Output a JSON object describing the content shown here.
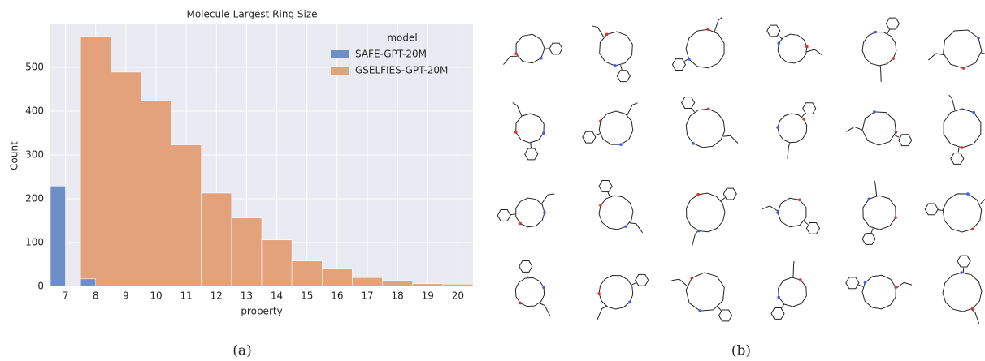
{
  "chart_data": {
    "type": "bar",
    "title": "Molecule Largest Ring Size",
    "x_label": "property",
    "y_label": "Count",
    "categories": [
      "7",
      "8",
      "9",
      "10",
      "11",
      "12",
      "13",
      "14",
      "15",
      "16",
      "17",
      "18",
      "19",
      "20"
    ],
    "series": [
      {
        "name": "SAFE-GPT-20M",
        "color": "#6d8ec6",
        "values": [
          229,
          17,
          0,
          0,
          0,
          0,
          0,
          0,
          0,
          0,
          0,
          0,
          0,
          0
        ]
      },
      {
        "name": "GSELFIES-GPT-20M",
        "color": "#e3a17c",
        "values": [
          0,
          571,
          489,
          424,
          323,
          213,
          156,
          106,
          58,
          41,
          20,
          13,
          6,
          5
        ]
      }
    ],
    "ylim": [
      0,
      598
    ],
    "yticks": [
      0,
      100,
      200,
      300,
      400,
      500
    ],
    "grid": true,
    "legend": {
      "title": "model",
      "position": "upper right"
    }
  },
  "captions": [
    "(a)",
    "(b)"
  ]
}
